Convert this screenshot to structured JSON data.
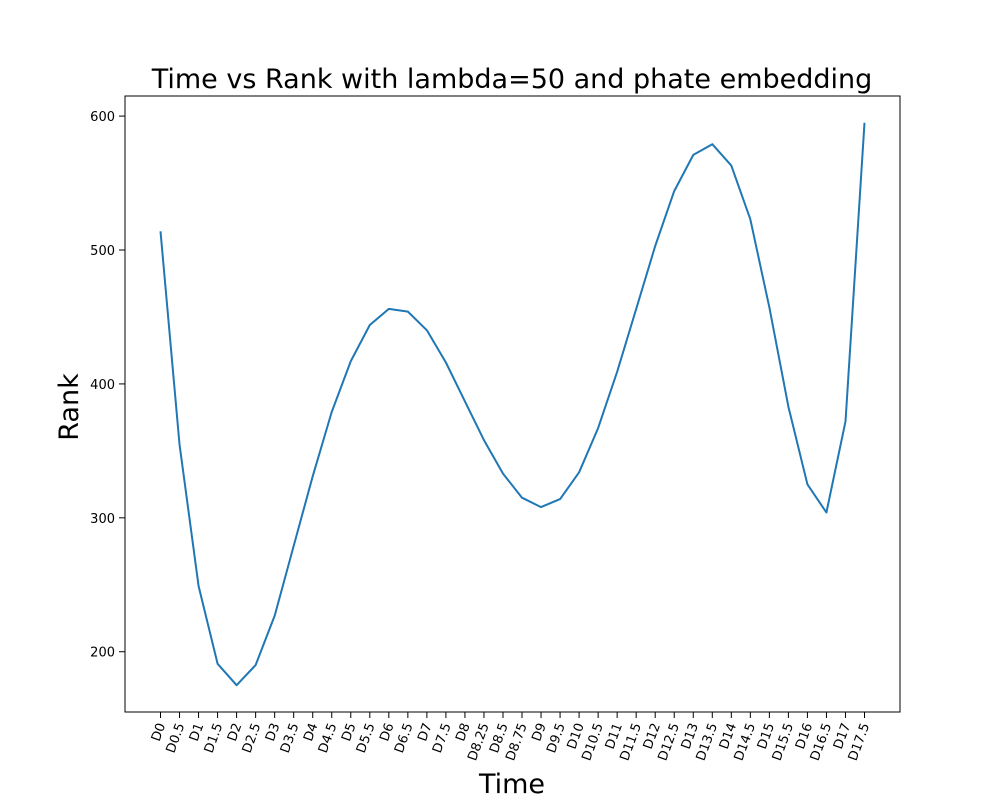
{
  "chart_data": {
    "type": "line",
    "title": "Time vs Rank with lambda=50 and phate embedding",
    "xlabel": "Time",
    "ylabel": "Rank",
    "ylim": [
      155,
      615
    ],
    "yticks": [
      200,
      300,
      400,
      500,
      600
    ],
    "grid": false,
    "line_color": "#1f77b4",
    "categories": [
      "D0",
      "D0.5",
      "D1",
      "D1.5",
      "D2",
      "D2.5",
      "D3",
      "D3.5",
      "D4",
      "D4.5",
      "D5",
      "D5.5",
      "D6",
      "D6.5",
      "D7",
      "D7.5",
      "D8",
      "D8.25",
      "D8.5",
      "D8.75",
      "D9",
      "D9.5",
      "D10",
      "D10.5",
      "D11",
      "D11.5",
      "D12",
      "D12.5",
      "D13",
      "D13.5",
      "D14",
      "D14.5",
      "D15",
      "D15.5",
      "D16",
      "D16.5",
      "D17",
      "D17.5"
    ],
    "series": [
      {
        "values": [
          514,
          355,
          249,
          191,
          175,
          190,
          227,
          279,
          331,
          379,
          417,
          444,
          456,
          454,
          440,
          416,
          387,
          358,
          333,
          315,
          308,
          314,
          334,
          367,
          409,
          456,
          503,
          544,
          571,
          579,
          563,
          523,
          457,
          383,
          325,
          304,
          372,
          595
        ]
      }
    ]
  }
}
